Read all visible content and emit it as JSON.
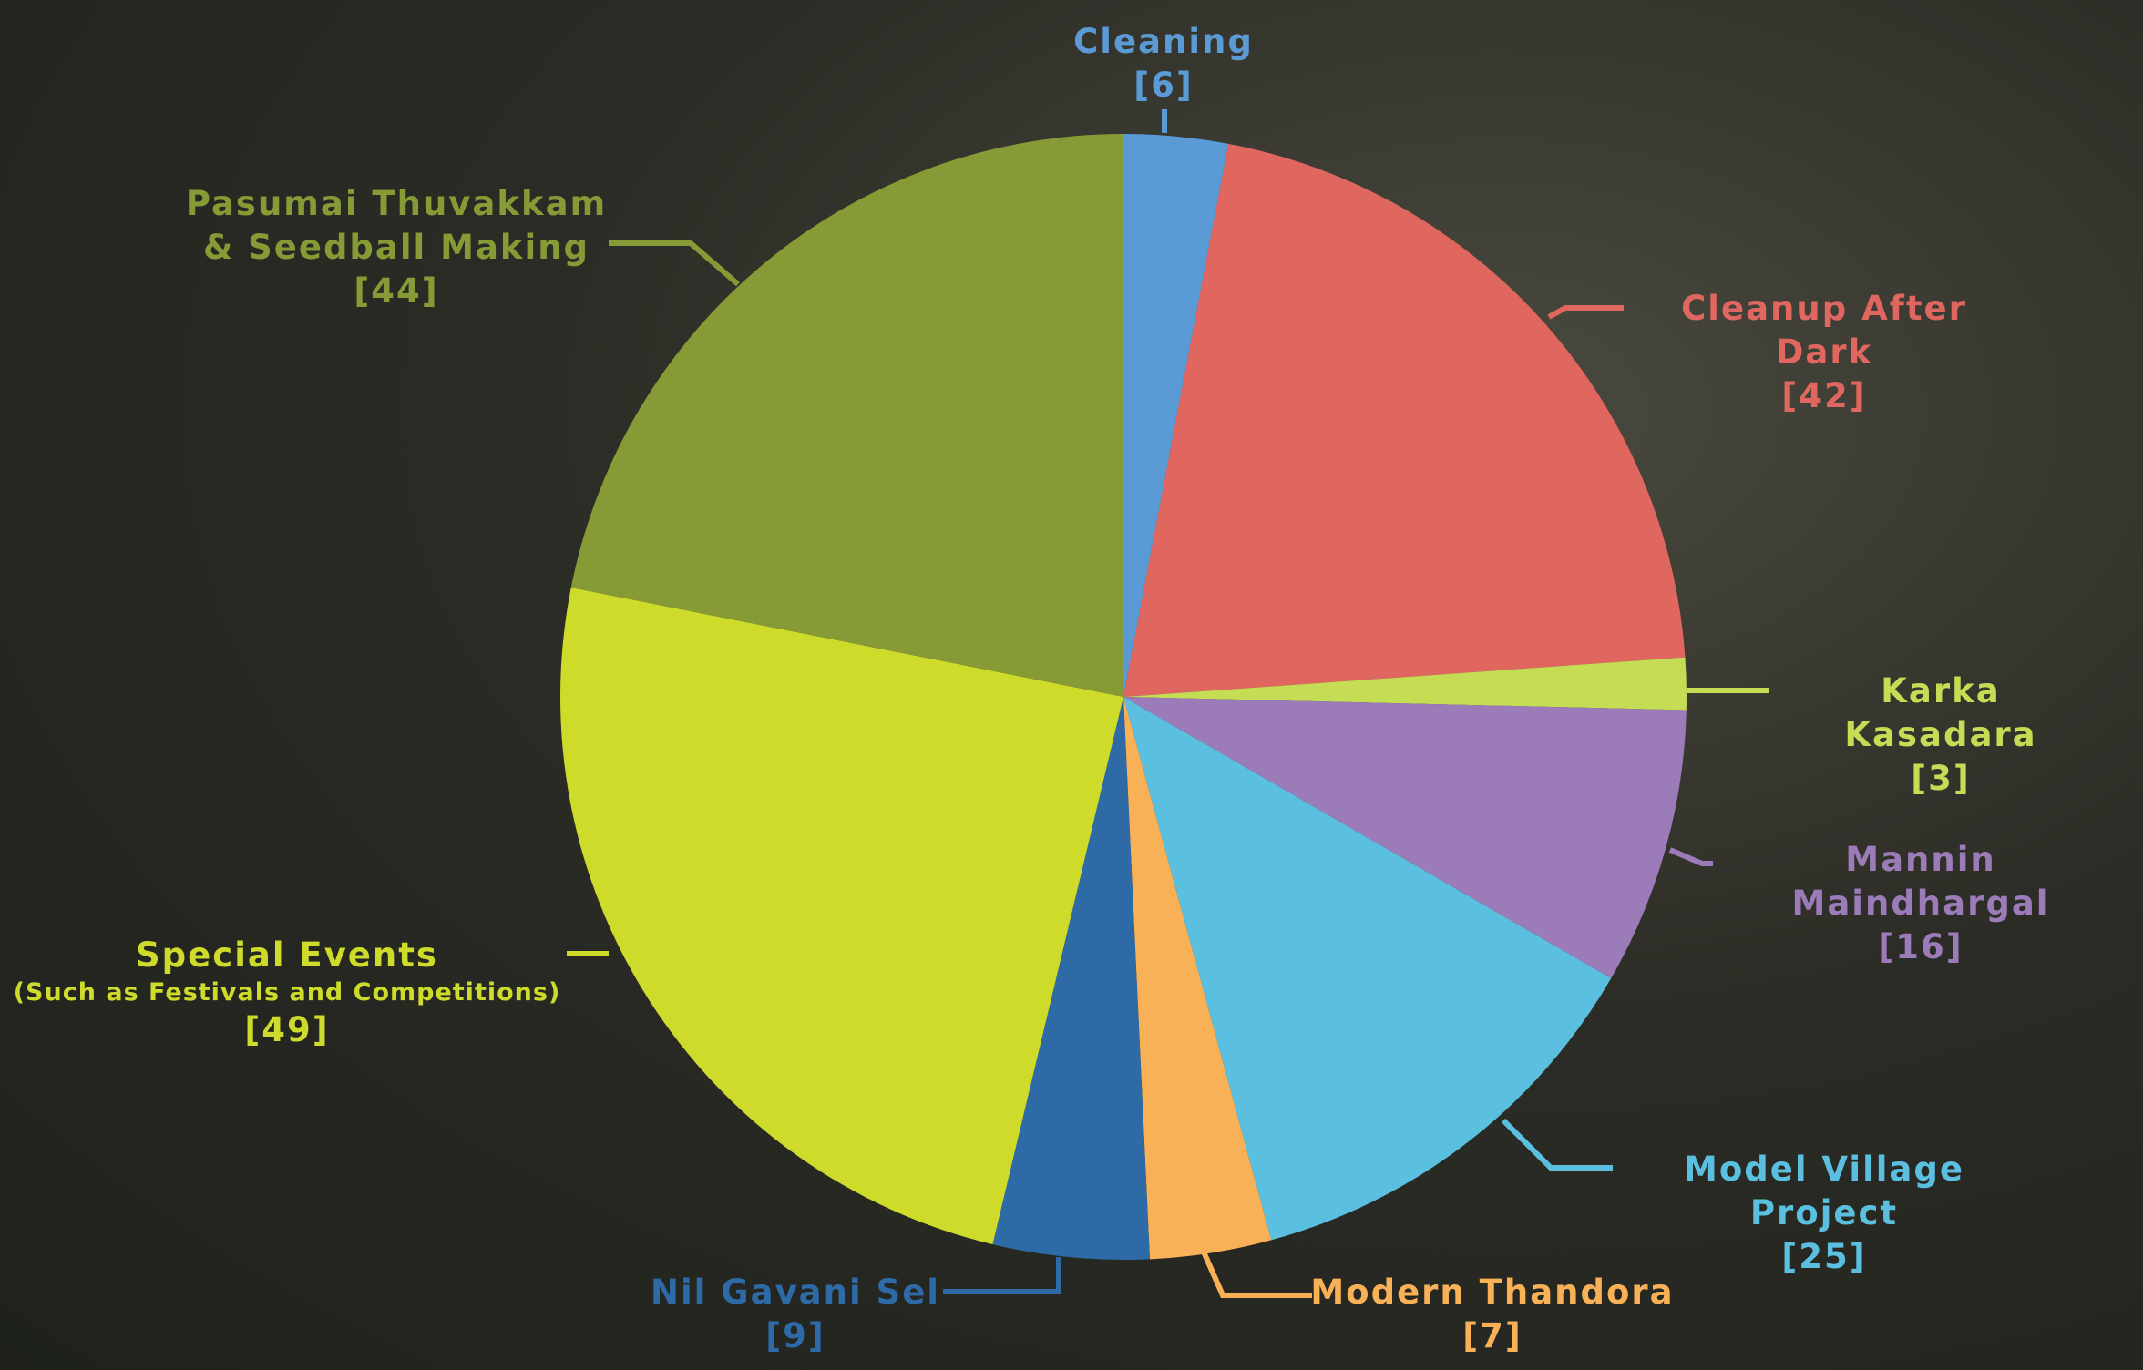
{
  "chart_data": {
    "type": "pie",
    "categories": [
      "Cleaning",
      "Cleanup After Dark",
      "Karka Kasadara",
      "Mannin Maindhargal",
      "Model Village Project",
      "Modern Thandora",
      "Nil Gavani Sel",
      "Special Events",
      "Pasumai Thuvakkam & Seedball Making"
    ],
    "values": [
      6,
      42,
      3,
      16,
      25,
      7,
      9,
      49,
      44
    ],
    "value_labels": [
      "[6]",
      "[42]",
      "[3]",
      "[16]",
      "[25]",
      "[7]",
      "[9]",
      "[49]",
      "[44]"
    ],
    "colors": [
      "#5b9bd5",
      "#e06660",
      "#c5dc55",
      "#9b7bb8",
      "#5bc0e0",
      "#f9b157",
      "#2e6aa6",
      "#cfdb2a",
      "#869a36"
    ],
    "annotations": [
      {
        "text": "(Such as Festivals and Competitions)"
      }
    ]
  }
}
